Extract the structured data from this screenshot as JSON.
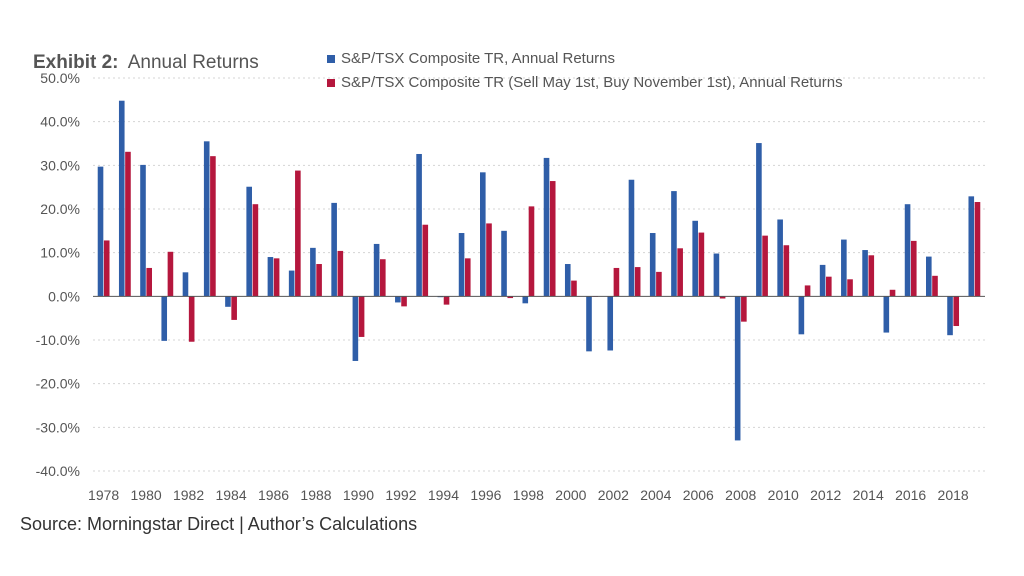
{
  "chart_data": {
    "type": "bar",
    "title_bold": "Exhibit 2:",
    "title_rest": "Annual Returns",
    "source": "Source: Morningstar Direct | Author’s Calculations",
    "xlabel": "",
    "ylabel": "",
    "ylim": [
      -40,
      50
    ],
    "yticks": [
      50,
      40,
      30,
      20,
      10,
      0,
      -10,
      -20,
      -30,
      -40
    ],
    "ytick_labels": [
      "50.0%",
      "40.0%",
      "30.0%",
      "20.0%",
      "10.0%",
      "0.0%",
      "-10.0%",
      "-20.0%",
      "-30.0%",
      "-40.0%"
    ],
    "grid": true,
    "legend_position": "top",
    "categories": [
      1978,
      1979,
      1980,
      1981,
      1982,
      1983,
      1984,
      1985,
      1986,
      1987,
      1988,
      1989,
      1990,
      1991,
      1992,
      1993,
      1994,
      1995,
      1996,
      1997,
      1998,
      1999,
      2000,
      2001,
      2002,
      2003,
      2004,
      2005,
      2006,
      2007,
      2008,
      2009,
      2010,
      2011,
      2012,
      2013,
      2014,
      2015,
      2016,
      2017,
      2018,
      2019
    ],
    "xtick_labels": [
      "1978",
      "1980",
      "1982",
      "1984",
      "1986",
      "1988",
      "1990",
      "1992",
      "1994",
      "1996",
      "1998",
      "2000",
      "2002",
      "2004",
      "2006",
      "2008",
      "2010",
      "2012",
      "2014",
      "2016",
      "2018"
    ],
    "series": [
      {
        "name": "S&P/TSX Composite TR, Annual Returns",
        "color": "#2f5ea8",
        "values": [
          29.7,
          44.8,
          30.1,
          -10.2,
          5.5,
          35.5,
          -2.4,
          25.1,
          9.0,
          5.9,
          11.1,
          21.4,
          -14.8,
          12.0,
          -1.4,
          32.6,
          -0.2,
          14.5,
          28.4,
          15.0,
          -1.6,
          31.7,
          7.4,
          -12.6,
          -12.4,
          26.7,
          14.5,
          24.1,
          17.3,
          9.8,
          -33.0,
          35.1,
          17.6,
          -8.7,
          7.2,
          13.0,
          10.6,
          -8.3,
          21.1,
          9.1,
          -8.9,
          22.9
        ]
      },
      {
        "name": "S&P/TSX Composite TR (Sell May 1st, Buy November 1st), Annual Returns",
        "color": "#b5173d",
        "values": [
          12.8,
          33.1,
          6.5,
          10.2,
          -10.4,
          32.1,
          -5.4,
          21.1,
          8.7,
          28.8,
          7.4,
          10.4,
          -9.3,
          8.5,
          -2.3,
          16.4,
          -1.9,
          8.7,
          16.7,
          -0.4,
          20.6,
          26.4,
          3.6,
          0.0,
          6.5,
          6.7,
          5.6,
          11.0,
          14.6,
          -0.5,
          -5.8,
          13.9,
          11.7,
          2.5,
          4.5,
          3.9,
          9.4,
          1.5,
          12.7,
          4.7,
          -6.8,
          21.6
        ]
      }
    ]
  }
}
